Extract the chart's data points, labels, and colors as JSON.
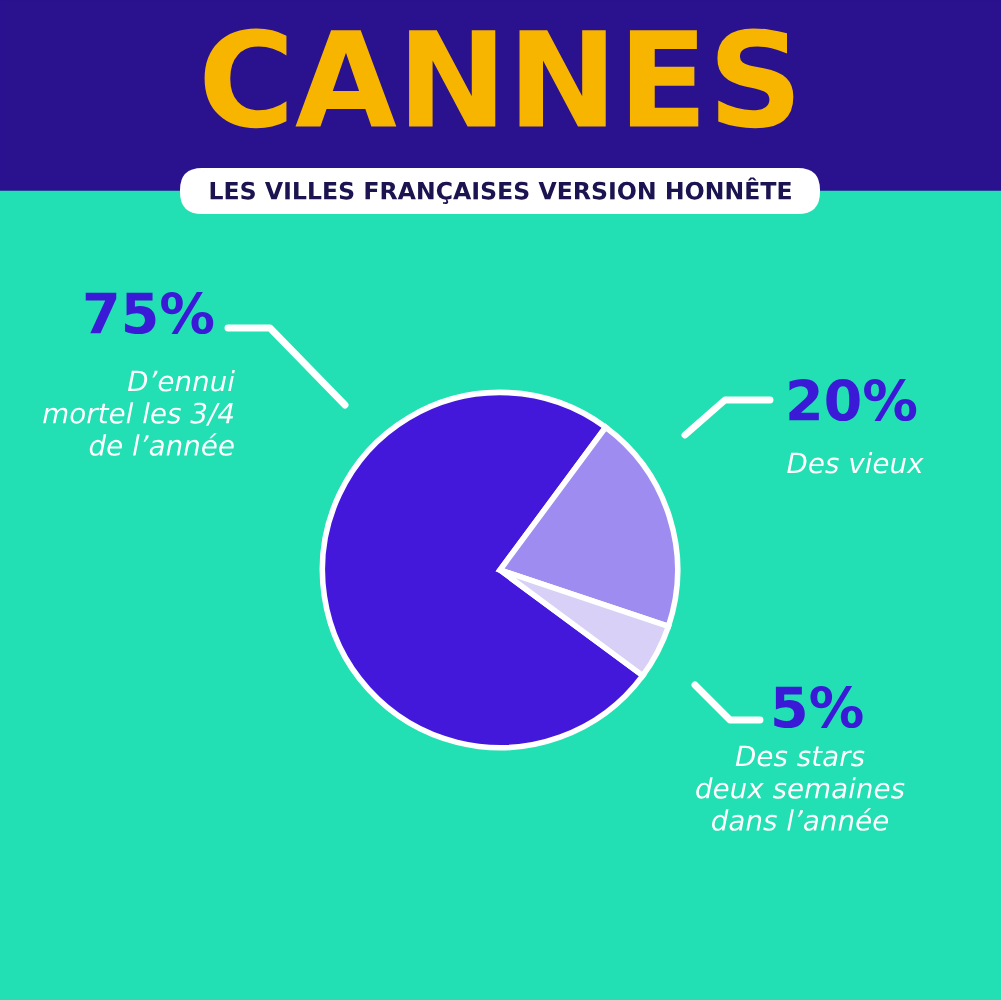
{
  "chart_data": {
    "type": "pie",
    "title": "CANNES",
    "subtitle": "LES VILLES FRANÇAISES VERSION HONNÊTE",
    "categories": [
      "D’ennui\nmortel les 3/4\nde l’année",
      "Des vieux",
      "Des stars\ndeux semaines\ndans l’année"
    ],
    "values": [
      75,
      20,
      5
    ],
    "colors": [
      "#4318db",
      "#9f8cf0",
      "#d9d0f7"
    ],
    "value_labels": [
      "75%",
      "20%",
      "5%"
    ]
  }
}
